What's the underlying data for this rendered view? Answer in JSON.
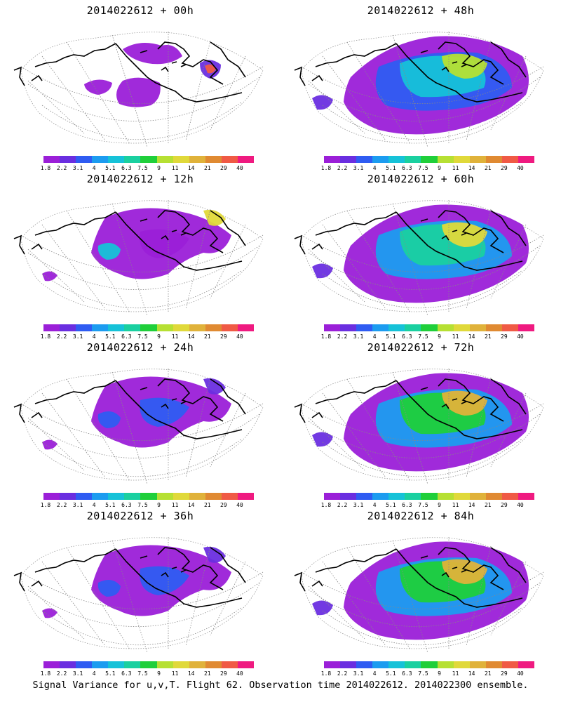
{
  "panels": [
    {
      "id": "p00",
      "title": "2014022612 + 00h",
      "col": 0,
      "row": 0,
      "level": 0
    },
    {
      "id": "p48",
      "title": "2014022612 + 48h",
      "col": 1,
      "row": 0,
      "level": 3
    },
    {
      "id": "p12",
      "title": "2014022612 + 12h",
      "col": 0,
      "row": 1,
      "level": 1
    },
    {
      "id": "p60",
      "title": "2014022612 + 60h",
      "col": 1,
      "row": 1,
      "level": 4
    },
    {
      "id": "p24",
      "title": "2014022612 + 24h",
      "col": 0,
      "row": 2,
      "level": 2
    },
    {
      "id": "p72",
      "title": "2014022612 + 72h",
      "col": 1,
      "row": 2,
      "level": 5
    },
    {
      "id": "p36",
      "title": "2014022612 + 36h",
      "col": 0,
      "row": 3,
      "level": 2
    },
    {
      "id": "p84",
      "title": "2014022612 + 84h",
      "col": 1,
      "row": 3,
      "level": 6
    }
  ],
  "colorbar": {
    "colors": [
      "#9b1fd8",
      "#6a2ee0",
      "#2f5cf2",
      "#1c9cf0",
      "#16c2d8",
      "#1ad0a0",
      "#1fcf3a",
      "#b6e033",
      "#e0d93a",
      "#e0b23a",
      "#e08a32",
      "#f05a45",
      "#ef1a80"
    ],
    "tick_labels": [
      "1.8",
      "2.2",
      "3.1",
      "4",
      "5.1",
      "6.3",
      "7.5",
      "9",
      "11",
      "14",
      "21",
      "29",
      "40"
    ]
  },
  "footer_text": "Signal Variance for u,v,T. Flight 62. Observation time 2014022612. 2014022300 ensemble."
}
